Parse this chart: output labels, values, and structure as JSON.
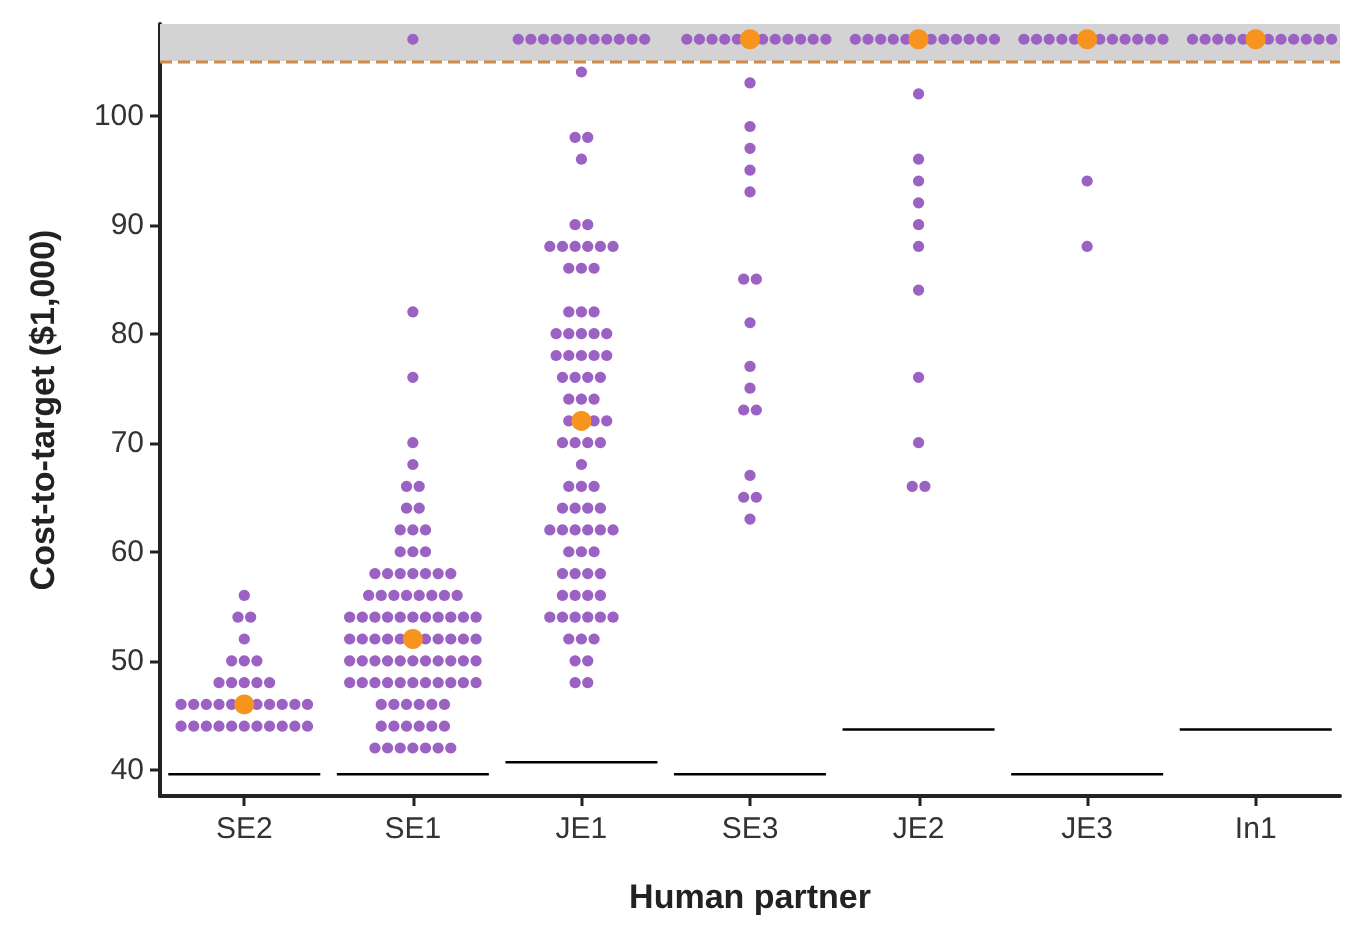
{
  "chart_data": {
    "type": "scatter",
    "xlabel": "Human partner",
    "ylabel": "Cost-to-target ($1,000)",
    "categories": [
      "SE2",
      "SE1",
      "JE1",
      "SE3",
      "JE2",
      "JE3",
      "In1"
    ],
    "ylim": [
      37.6,
      108.4
    ],
    "yticks": [
      40,
      50,
      60,
      70,
      80,
      90,
      100
    ],
    "grid": false,
    "bands": [
      {
        "axis": "y",
        "from": 105,
        "to": 108.4,
        "color": "#d3d3d3"
      }
    ],
    "ref_lines": [
      {
        "axis": "y",
        "value": 105,
        "label": null,
        "color": "#cd8a4a",
        "line_style": "dashed"
      }
    ],
    "series": [
      {
        "color": "#9b62c4",
        "marker": "circle",
        "x": [
          "SE2",
          "SE2",
          "SE2",
          "SE2",
          "SE2",
          "SE2",
          "SE2",
          "SE2",
          "SE2",
          "SE2",
          "SE2",
          "SE2",
          "SE2",
          "SE2",
          "SE2",
          "SE2",
          "SE2",
          "SE2",
          "SE2",
          "SE2",
          "SE2",
          "SE2",
          "SE2",
          "SE2",
          "SE2",
          "SE2",
          "SE2",
          "SE2",
          "SE2",
          "SE2",
          "SE2",
          "SE2",
          "SE2"
        ],
        "values": [
          44,
          44,
          44,
          44,
          44,
          44,
          44,
          44,
          44,
          44,
          44,
          46,
          46,
          46,
          46,
          46,
          46,
          46,
          46,
          46,
          46,
          48,
          48,
          48,
          48,
          48,
          50,
          50,
          50,
          52,
          54,
          54,
          56
        ]
      },
      {
        "color": "#9b62c4",
        "marker": "circle",
        "x": [
          "SE1",
          "SE1",
          "SE1",
          "SE1",
          "SE1",
          "SE1",
          "SE1",
          "SE1",
          "SE1",
          "SE1",
          "SE1",
          "SE1",
          "SE1",
          "SE1",
          "SE1",
          "SE1",
          "SE1",
          "SE1",
          "SE1",
          "SE1",
          "SE1",
          "SE1",
          "SE1",
          "SE1",
          "SE1",
          "SE1",
          "SE1",
          "SE1",
          "SE1",
          "SE1",
          "SE1",
          "SE1",
          "SE1",
          "SE1",
          "SE1",
          "SE1",
          "SE1",
          "SE1",
          "SE1",
          "SE1",
          "SE1",
          "SE1",
          "SE1",
          "SE1",
          "SE1",
          "SE1",
          "SE1",
          "SE1",
          "SE1",
          "SE1",
          "SE1",
          "SE1",
          "SE1",
          "SE1",
          "SE1",
          "SE1",
          "SE1",
          "SE1",
          "SE1",
          "SE1",
          "SE1",
          "SE1",
          "SE1",
          "SE1",
          "SE1",
          "SE1",
          "SE1",
          "SE1",
          "SE1",
          "SE1",
          "SE1",
          "SE1",
          "SE1",
          "SE1",
          "SE1",
          "SE1",
          "SE1",
          "SE1",
          "SE1",
          "SE1",
          "SE1",
          "SE1",
          "SE1",
          "SE1",
          "SE1",
          "SE1",
          "SE1",
          "SE1",
          "SE1",
          "SE1",
          "SE1",
          "SE1"
        ],
        "values": [
          42,
          42,
          42,
          42,
          42,
          42,
          42,
          44,
          44,
          44,
          44,
          44,
          44,
          46,
          46,
          46,
          46,
          46,
          46,
          48,
          48,
          48,
          48,
          48,
          48,
          48,
          48,
          48,
          48,
          48,
          50,
          50,
          50,
          50,
          50,
          50,
          50,
          50,
          50,
          50,
          50,
          52,
          52,
          52,
          52,
          52,
          52,
          52,
          52,
          52,
          52,
          54,
          54,
          54,
          54,
          54,
          54,
          54,
          54,
          54,
          54,
          54,
          56,
          56,
          56,
          56,
          56,
          56,
          56,
          56,
          58,
          58,
          58,
          58,
          58,
          58,
          58,
          60,
          60,
          60,
          62,
          62,
          62,
          64,
          64,
          66,
          66,
          68,
          70,
          76,
          82,
          107
        ]
      },
      {
        "color": "#9b62c4",
        "marker": "circle",
        "x": [
          "JE1",
          "JE1",
          "JE1",
          "JE1",
          "JE1",
          "JE1",
          "JE1",
          "JE1",
          "JE1",
          "JE1",
          "JE1",
          "JE1",
          "JE1",
          "JE1",
          "JE1",
          "JE1",
          "JE1",
          "JE1",
          "JE1",
          "JE1",
          "JE1",
          "JE1",
          "JE1",
          "JE1",
          "JE1",
          "JE1",
          "JE1",
          "JE1",
          "JE1",
          "JE1",
          "JE1",
          "JE1",
          "JE1",
          "JE1",
          "JE1",
          "JE1",
          "JE1",
          "JE1",
          "JE1",
          "JE1",
          "JE1",
          "JE1",
          "JE1",
          "JE1",
          "JE1",
          "JE1",
          "JE1",
          "JE1",
          "JE1",
          "JE1",
          "JE1",
          "JE1",
          "JE1",
          "JE1",
          "JE1",
          "JE1",
          "JE1",
          "JE1",
          "JE1",
          "JE1",
          "JE1",
          "JE1",
          "JE1",
          "JE1",
          "JE1",
          "JE1",
          "JE1",
          "JE1",
          "JE1",
          "JE1",
          "JE1",
          "JE1",
          "JE1",
          "JE1",
          "JE1",
          "JE1",
          "JE1",
          "JE1",
          "JE1",
          "JE1",
          "JE1",
          "JE1",
          "JE1",
          "JE1",
          "JE1",
          "JE1",
          "JE1",
          "JE1",
          "JE1",
          "JE1",
          "JE1"
        ],
        "values": [
          48,
          48,
          50,
          50,
          52,
          52,
          52,
          54,
          54,
          54,
          54,
          54,
          54,
          56,
          56,
          56,
          56,
          58,
          58,
          58,
          58,
          60,
          60,
          60,
          62,
          62,
          62,
          62,
          62,
          62,
          64,
          64,
          64,
          64,
          66,
          66,
          66,
          68,
          70,
          70,
          70,
          70,
          72,
          72,
          72,
          74,
          74,
          74,
          76,
          76,
          76,
          76,
          78,
          78,
          78,
          78,
          78,
          80,
          80,
          80,
          80,
          80,
          82,
          82,
          82,
          86,
          86,
          86,
          88,
          88,
          88,
          88,
          88,
          88,
          90,
          90,
          96,
          98,
          98,
          104,
          107,
          107,
          107,
          107,
          107,
          107,
          107,
          107,
          107,
          107,
          107
        ]
      },
      {
        "color": "#9b62c4",
        "marker": "circle",
        "x": [
          "SE3",
          "SE3",
          "SE3",
          "SE3",
          "SE3",
          "SE3",
          "SE3",
          "SE3",
          "SE3",
          "SE3",
          "SE3",
          "SE3",
          "SE3",
          "SE3",
          "SE3",
          "SE3",
          "SE3",
          "SE3",
          "SE3",
          "SE3",
          "SE3",
          "SE3",
          "SE3",
          "SE3",
          "SE3",
          "SE3",
          "SE3"
        ],
        "values": [
          63,
          65,
          65,
          67,
          73,
          73,
          75,
          77,
          81,
          85,
          85,
          93,
          95,
          97,
          99,
          103,
          107,
          107,
          107,
          107,
          107,
          107,
          107,
          107,
          107,
          107,
          107
        ]
      },
      {
        "color": "#9b62c4",
        "marker": "circle",
        "x": [
          "JE2",
          "JE2",
          "JE2",
          "JE2",
          "JE2",
          "JE2",
          "JE2",
          "JE2",
          "JE2",
          "JE2",
          "JE2",
          "JE2",
          "JE2",
          "JE2",
          "JE2",
          "JE2",
          "JE2",
          "JE2",
          "JE2",
          "JE2",
          "JE2",
          "JE2"
        ],
        "values": [
          66,
          66,
          70,
          76,
          84,
          88,
          90,
          92,
          94,
          96,
          102,
          107,
          107,
          107,
          107,
          107,
          107,
          107,
          107,
          107,
          107,
          107
        ]
      },
      {
        "color": "#9b62c4",
        "marker": "circle",
        "x": [
          "JE3",
          "JE3",
          "JE3",
          "JE3",
          "JE3",
          "JE3",
          "JE3",
          "JE3",
          "JE3",
          "JE3",
          "JE3",
          "JE3",
          "JE3"
        ],
        "values": [
          88,
          94,
          107,
          107,
          107,
          107,
          107,
          107,
          107,
          107,
          107,
          107,
          107
        ]
      },
      {
        "color": "#9b62c4",
        "marker": "circle",
        "x": [
          "In1",
          "In1",
          "In1",
          "In1",
          "In1",
          "In1",
          "In1",
          "In1",
          "In1",
          "In1",
          "In1"
        ],
        "values": [
          107,
          107,
          107,
          107,
          107,
          107,
          107,
          107,
          107,
          107,
          107
        ]
      },
      {
        "color": "#f7941d",
        "marker": "circle",
        "x": [
          "SE2",
          "SE1",
          "JE1",
          "SE3",
          "JE2",
          "JE3",
          "In1"
        ],
        "values": [
          46,
          52,
          72,
          107,
          107,
          107,
          107
        ]
      },
      {
        "type": "box",
        "color": "#000000",
        "boxes": [
          {
            "low": 39.6,
            "q1": 39.6,
            "median": 39.6,
            "q3": 39.6,
            "high": 39.6
          },
          {
            "low": 39.6,
            "q1": 39.6,
            "median": 39.6,
            "q3": 39.6,
            "high": 39.6
          },
          {
            "low": 40.7,
            "q1": 40.7,
            "median": 40.7,
            "q3": 40.7,
            "high": 40.7
          },
          {
            "low": 39.6,
            "q1": 39.6,
            "median": 39.6,
            "q3": 39.6,
            "high": 39.6
          },
          {
            "low": 43.7,
            "q1": 43.7,
            "median": 43.7,
            "q3": 43.7,
            "high": 43.7
          },
          {
            "low": 39.6,
            "q1": 39.6,
            "median": 39.6,
            "q3": 39.6,
            "high": 39.6
          },
          {
            "low": 43.7,
            "q1": 43.7,
            "median": 43.7,
            "q3": 43.7,
            "high": 43.7
          }
        ]
      }
    ]
  }
}
